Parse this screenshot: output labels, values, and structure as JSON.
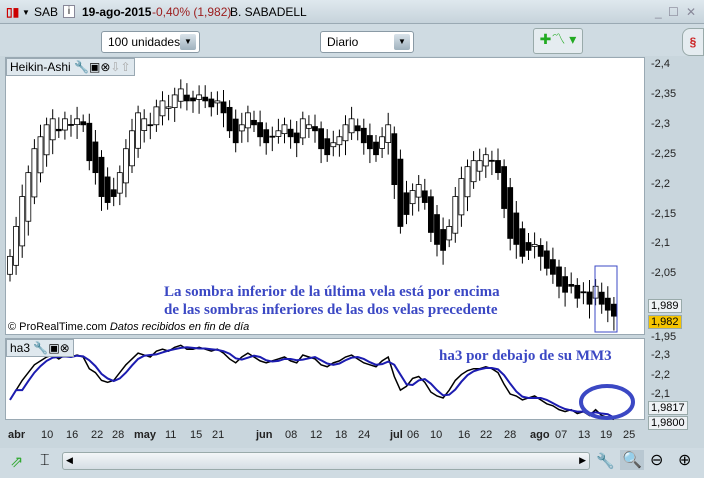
{
  "titlebar": {
    "symbol": "SAB",
    "date": "19-ago-2015",
    "change": "-0,40% (1,982)",
    "name": "B. SABADELL",
    "change_color": "#9b1b1b"
  },
  "toolbar": {
    "units": "100 unidades",
    "period": "Diario"
  },
  "main_panel": {
    "title": "Heikin-Ashi",
    "copyright": "© ProRealTime.com",
    "data_note": "Datos recibidos en fin de día",
    "price_ticks": [
      "2,4",
      "2,35",
      "2,3",
      "2,25",
      "2,2",
      "2,15",
      "2,1",
      "2,05",
      "1,95"
    ],
    "last_labels": [
      "1,989",
      "1,982"
    ],
    "annotation_line1": "La sombra inferior de la última vela está por encima",
    "annotation_line2": "de las sombras inferiores de las dos velas precedente"
  },
  "indicator_panel": {
    "title": "ha3",
    "ticks": [
      "2,3",
      "2,2",
      "2,1"
    ],
    "labels": [
      "1,9817",
      "1,9800"
    ],
    "annotation": "ha3 por debajo de su MM3"
  },
  "x_ticks": [
    "abr",
    "10",
    "16",
    "22",
    "28",
    "may",
    "11",
    "15",
    "21",
    "jun",
    "08",
    "12",
    "18",
    "24",
    "jul",
    "06",
    "10",
    "16",
    "22",
    "28",
    "ago",
    "07",
    "13",
    "19",
    "25"
  ],
  "colors": {
    "annotation": "#3b48c4",
    "ma_line": "#1c1cb0",
    "ha_line": "#000000",
    "last_price": "#f5c400"
  },
  "chart_data": {
    "type": "candlestick",
    "style": "Heikin-Ashi",
    "ylim": [
      1.95,
      2.4
    ],
    "closes": [
      2.08,
      2.13,
      2.18,
      2.22,
      2.26,
      2.28,
      2.3,
      2.31,
      2.29,
      2.31,
      2.3,
      2.31,
      2.3,
      2.24,
      2.22,
      2.18,
      2.17,
      2.18,
      2.22,
      2.26,
      2.29,
      2.32,
      2.31,
      2.3,
      2.33,
      2.34,
      2.33,
      2.35,
      2.36,
      2.34,
      2.34,
      2.35,
      2.34,
      2.33,
      2.34,
      2.32,
      2.29,
      2.27,
      2.3,
      2.32,
      2.3,
      2.28,
      2.27,
      2.28,
      2.29,
      2.3,
      2.28,
      2.27,
      2.31,
      2.3,
      2.29,
      2.26,
      2.25,
      2.27,
      2.28,
      2.3,
      2.31,
      2.29,
      2.27,
      2.26,
      2.25,
      2.28,
      2.3,
      2.2,
      2.13,
      2.15,
      2.19,
      2.2,
      2.17,
      2.12,
      2.1,
      2.09,
      2.13,
      2.18,
      2.21,
      2.23,
      2.24,
      2.24,
      2.25,
      2.24,
      2.22,
      2.16,
      2.11,
      2.1,
      2.08,
      2.09,
      2.1,
      2.08,
      2.06,
      2.05,
      2.03,
      2.02,
      2.03,
      2.01,
      2.02,
      2.0,
      2.03,
      2.0,
      1.99,
      1.98
    ],
    "indicator": {
      "series": [
        "ha3",
        "MM3"
      ],
      "ylim": [
        1.95,
        2.38
      ]
    }
  }
}
